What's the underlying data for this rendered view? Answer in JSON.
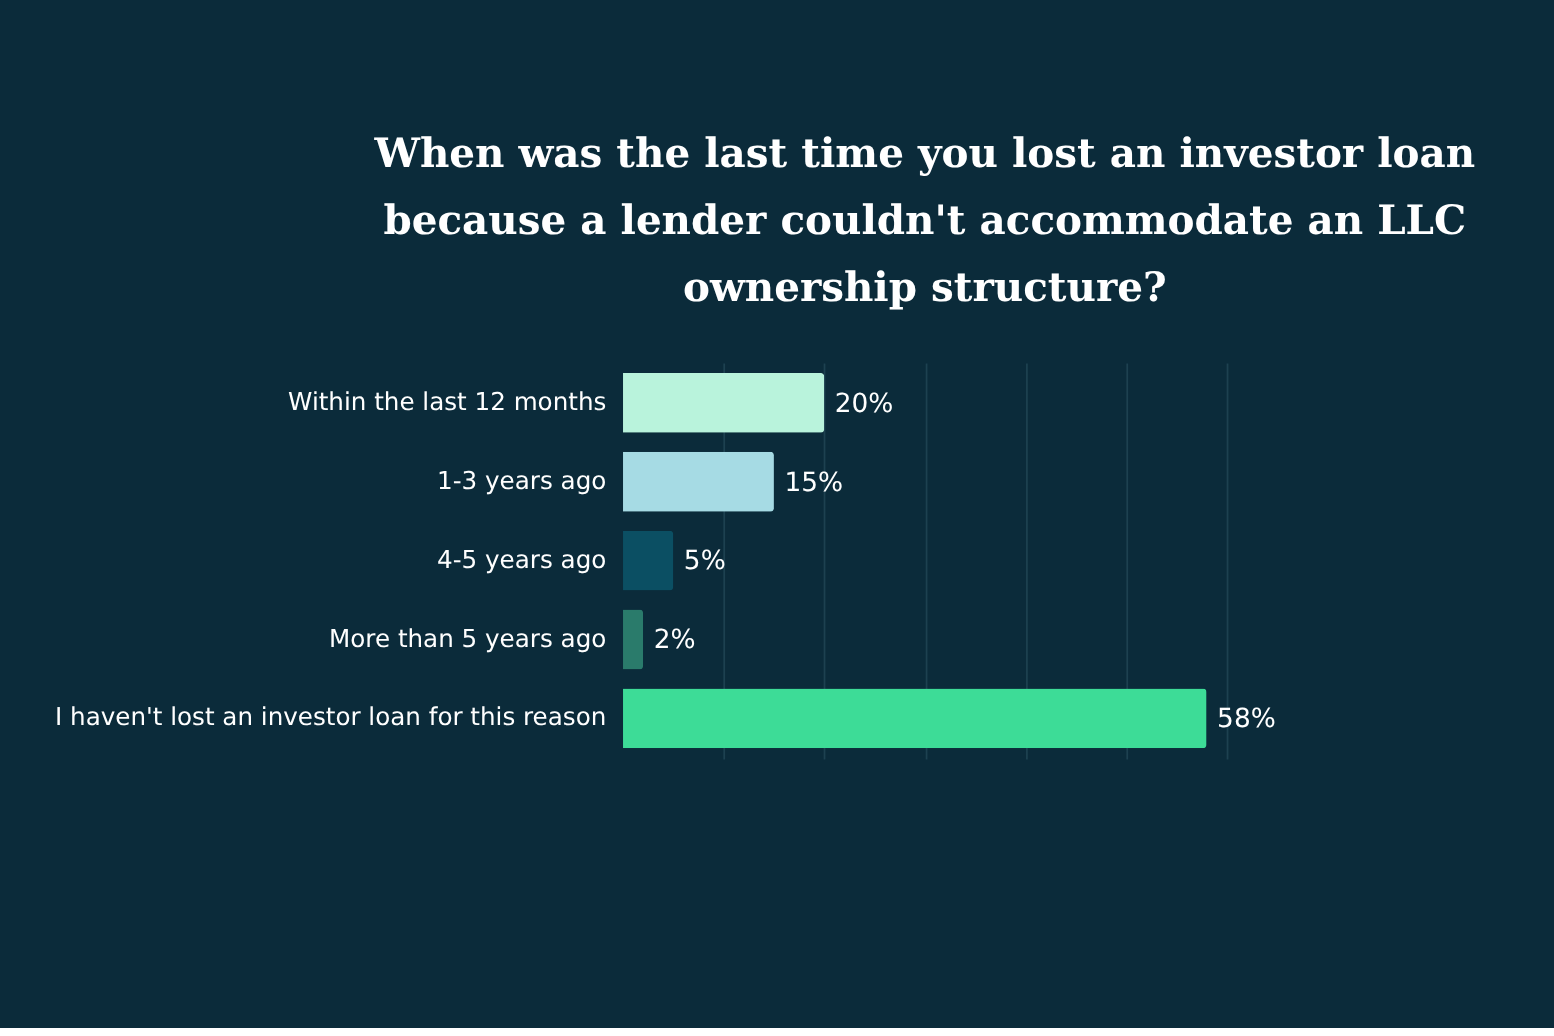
{
  "chart_data": {
    "type": "bar",
    "orientation": "horizontal",
    "title": [
      "When was the last time you lost an investor loan",
      "because a lender couldn't accommodate an LLC",
      "ownership structure?"
    ],
    "categories": [
      "Within the last 12 months",
      "1-3 years ago",
      "4-5 years ago",
      "More than 5 years ago",
      "I haven't lost an investor loan for this reason"
    ],
    "values": [
      20,
      15,
      5,
      2,
      58
    ],
    "colors": [
      "#b9f3dc",
      "#a6dbe4",
      "#0b4f63",
      "#2a7b6b",
      "#3ddc97"
    ],
    "value_labels": [
      "20%",
      "15%",
      "5%",
      "2%",
      "58%"
    ],
    "xlim": [
      0,
      60
    ],
    "xticks": [
      {
        "value": 10,
        "label": null
      },
      {
        "value": 20,
        "label": null
      },
      {
        "value": 30,
        "label": null
      },
      {
        "value": 40,
        "label": null
      },
      {
        "value": 50,
        "label": null
      },
      {
        "value": 60,
        "label": null
      }
    ],
    "grid": "x",
    "tick_labels": "y"
  }
}
